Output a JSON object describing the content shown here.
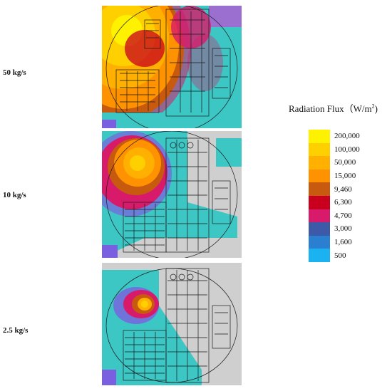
{
  "rows": [
    {
      "label": "50 kg/s"
    },
    {
      "label": "10 kg/s"
    },
    {
      "label": "2.5 kg/s"
    }
  ],
  "legend": {
    "title": "Radiation Flux（W/m",
    "title_sup": "2",
    "title_close": ")",
    "levels": [
      {
        "label": "200,000",
        "color": "#fff200"
      },
      {
        "label": "100,000",
        "color": "#ffd000"
      },
      {
        "label": "50,000",
        "color": "#ffb000"
      },
      {
        "label": "15,000",
        "color": "#ff9200"
      },
      {
        "label": "9,460",
        "color": "#c85a10"
      },
      {
        "label": "6,300",
        "color": "#c8001e"
      },
      {
        "label": "4,700",
        "color": "#d81a6a"
      },
      {
        "label": "3,000",
        "color": "#3d5aa8"
      },
      {
        "label": "1,600",
        "color": "#2a7fd0"
      },
      {
        "label": "500",
        "color": "#1ab2f0"
      }
    ]
  }
}
